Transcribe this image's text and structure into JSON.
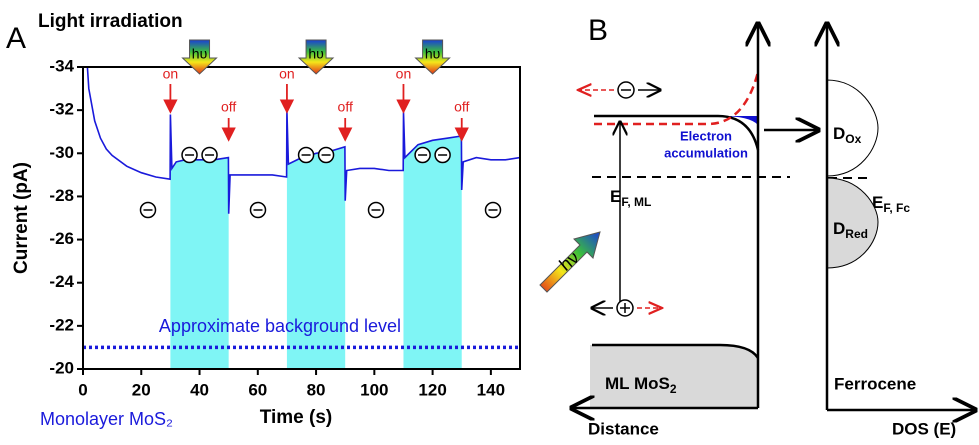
{
  "chart_data": {
    "type": "line",
    "panel_label": "A",
    "title": "Light irradiation",
    "y_label": "Current (pA)",
    "x_label": "Time (s)",
    "sample_label": "Monolayer MoS₂",
    "x": [
      1.5,
      2,
      4,
      6,
      8,
      10,
      15,
      20,
      25,
      29.9,
      30,
      30.5,
      32,
      35,
      40,
      45,
      49.9,
      50,
      50.5,
      55,
      60,
      65,
      69.9,
      70,
      70.5,
      75,
      80,
      85,
      89.9,
      90,
      90.5,
      95,
      100,
      105,
      109.9,
      110,
      110.5,
      115,
      120,
      125,
      129.9,
      130,
      130.5,
      135,
      140,
      145,
      150
    ],
    "values": [
      -34,
      -33,
      -31.5,
      -30.7,
      -30.2,
      -29.9,
      -29.4,
      -29.1,
      -28.9,
      -28.8,
      -31.8,
      -29.3,
      -29.6,
      -29.7,
      -29.7,
      -29.7,
      -29.8,
      -27.2,
      -29,
      -29,
      -29,
      -29,
      -28.9,
      -32,
      -29.5,
      -29.8,
      -30,
      -30.1,
      -30.3,
      -27.8,
      -29.2,
      -29.3,
      -29.3,
      -29.2,
      -29.2,
      -31.9,
      -29.8,
      -30.4,
      -30.6,
      -30.7,
      -30.8,
      -28.3,
      -29.6,
      -29.8,
      -29.7,
      -29.7,
      -29.8
    ],
    "color": "#1a1adb",
    "xlim": [
      0,
      150
    ],
    "xticks": [
      0,
      20,
      40,
      60,
      80,
      100,
      120,
      140
    ],
    "ylim": [
      -20,
      -34
    ],
    "yticks": [
      -20,
      -22,
      -24,
      -26,
      -28,
      -30,
      -32,
      -34
    ],
    "light_periods": [
      {
        "start": 30,
        "end": 50
      },
      {
        "start": 70,
        "end": 90
      },
      {
        "start": 110,
        "end": 130
      }
    ],
    "light_color": "#7ff5f5",
    "light_label": "hυ",
    "on_label": "on",
    "off_label": "off",
    "background_level": -21,
    "background_label": "Approximate background level"
  },
  "diagram": {
    "panel_label": "B",
    "accumulation": [
      "Electron",
      "accumulation"
    ],
    "fermi_ml": {
      "main": "E",
      "sub": "F, ML"
    },
    "fermi_fc": {
      "main": "E",
      "sub": "F, Fc"
    },
    "d_ox": {
      "main": "D",
      "sub": "Ox"
    },
    "d_red": {
      "main": "D",
      "sub": "Red"
    },
    "photon": "hν",
    "material": {
      "main": "ML MoS",
      "sub": "2"
    },
    "electrolyte": "Ferrocene",
    "x_axis_left": "Distance",
    "x_axis_right": "DOS (E)"
  }
}
